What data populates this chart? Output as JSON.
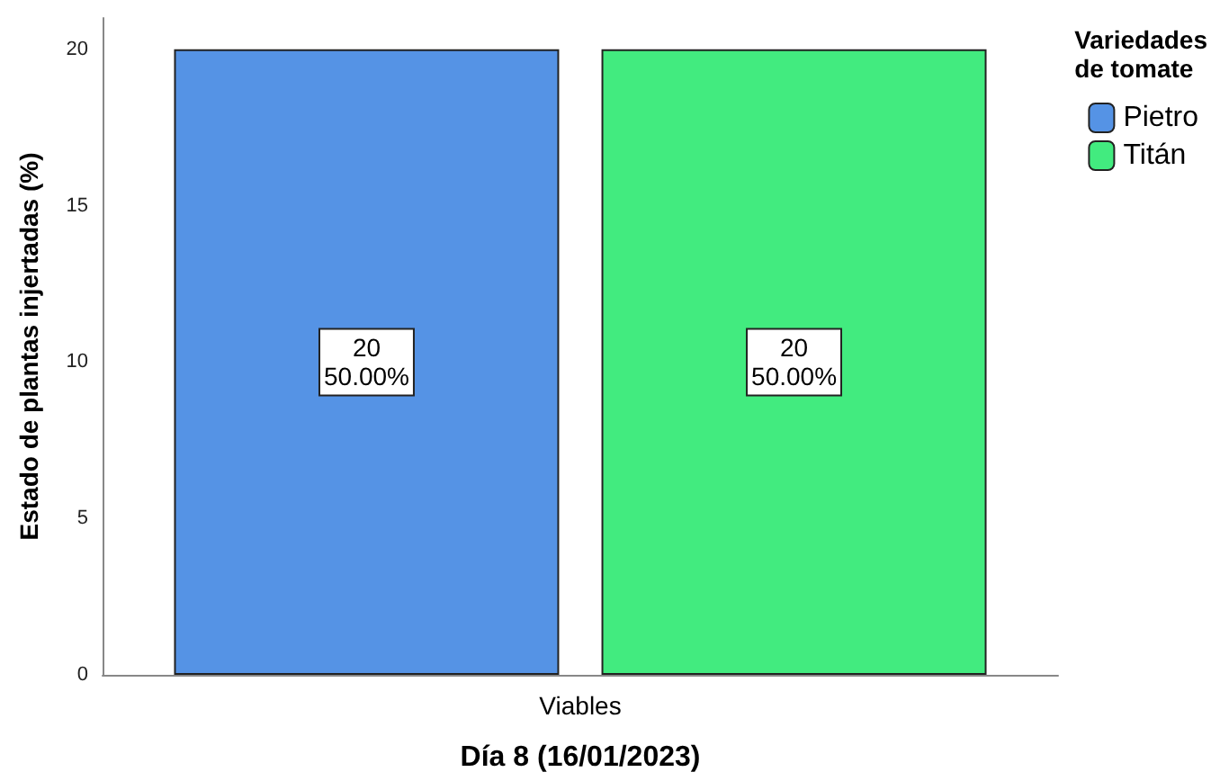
{
  "chart_data": {
    "type": "bar",
    "xlabel": "Día 8 (16/01/2023)",
    "ylabel": "Estado de plantas injertadas (%)",
    "legend_title": "Variedades\nde tomate",
    "categories": [
      "Viables"
    ],
    "series": [
      {
        "name": "Pietro",
        "color": "#5593e5",
        "values": [
          20
        ],
        "value_labels": [
          "20\n50.00%"
        ]
      },
      {
        "name": "Titán",
        "color": "#42eb7f",
        "values": [
          20
        ],
        "value_labels": [
          "20\n50.00%"
        ]
      }
    ],
    "ylim": [
      0,
      21
    ],
    "yticks": [
      0,
      5,
      10,
      15,
      20
    ],
    "grid": false,
    "legend": "top right"
  }
}
